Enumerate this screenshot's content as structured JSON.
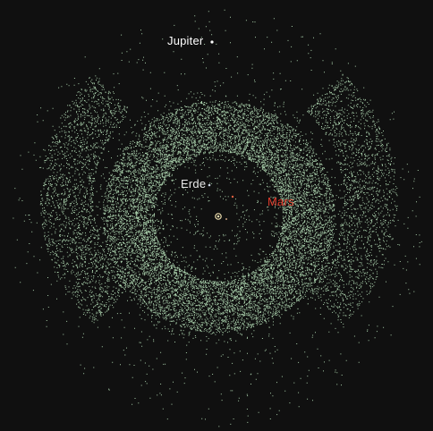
{
  "background_color": "#101010",
  "asteroid_color": "#c3f0c6",
  "sun": {
    "name": "sun-icon",
    "color": "#f0e0b0"
  },
  "bodies": [
    {
      "key": "jupiter",
      "label": "Jupiter",
      "label_color": "#ffffff",
      "dot_color": "#ffffff"
    },
    {
      "key": "erde",
      "label": "Erde",
      "label_color": "#e8e8e8",
      "dot_color": "#cfd8e8"
    },
    {
      "key": "mars",
      "label": "Mars",
      "label_color": "#e03a2a",
      "dot_color": "#e06040"
    }
  ]
}
